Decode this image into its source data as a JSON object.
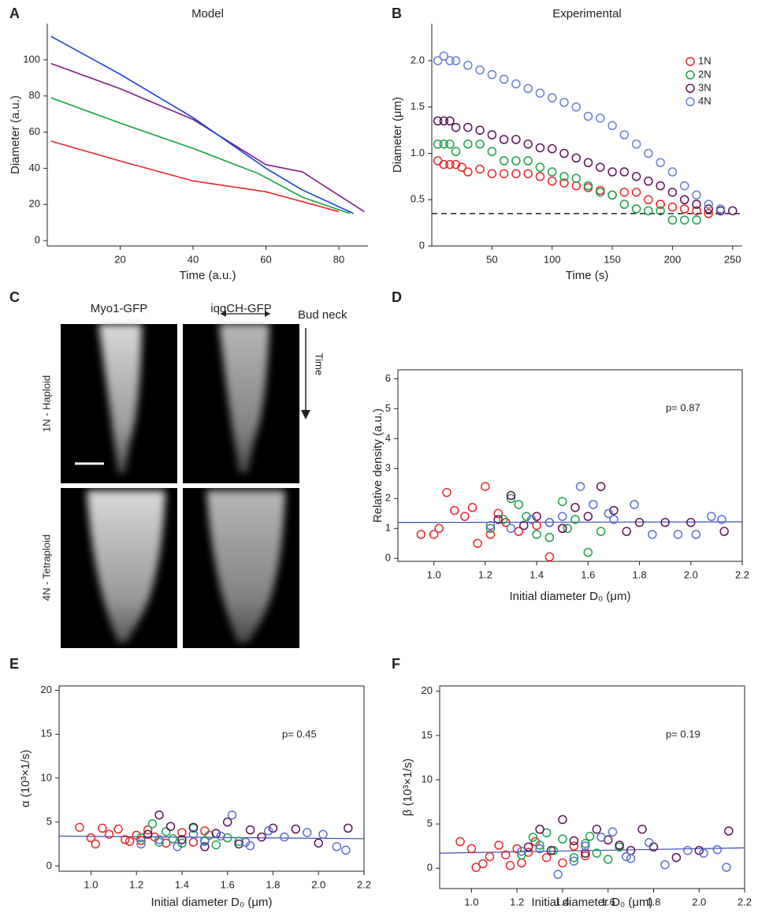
{
  "chart_data": [
    {
      "type": "line",
      "panel_label": "A",
      "title": "Model",
      "xlabel": "Time (a.u.)",
      "ylabel": "Diameter (a.u.)",
      "xlim": [
        0,
        88
      ],
      "xticks": [
        20,
        40,
        60,
        80
      ],
      "ylim": [
        -3,
        120
      ],
      "yticks": [
        0,
        20,
        40,
        60,
        80,
        100
      ],
      "series": [
        {
          "color": "#e8262a",
          "x": [
            1,
            20,
            40,
            60,
            80
          ],
          "values": [
            55,
            44,
            33,
            27,
            16
          ]
        },
        {
          "color": "#15a23c",
          "x": [
            1,
            20,
            40,
            58,
            70,
            83
          ],
          "values": [
            79,
            65,
            51,
            37,
            24,
            15
          ]
        },
        {
          "color": "#7e1f87",
          "x": [
            1,
            20,
            40,
            60,
            70,
            80,
            87
          ],
          "values": [
            98,
            84,
            67,
            42,
            38,
            25,
            16
          ]
        },
        {
          "color": "#1b3ee0",
          "x": [
            1,
            20,
            40,
            60,
            70,
            84
          ],
          "values": [
            113,
            92,
            68,
            40,
            28,
            15
          ]
        }
      ]
    },
    {
      "type": "scatter",
      "panel_label": "B",
      "title": "Experimental",
      "xlabel": "Time (s)",
      "ylabel": "Diameter (μm)",
      "xlim": [
        0,
        258
      ],
      "xticks": [
        50,
        100,
        150,
        200,
        250
      ],
      "ylim": [
        0,
        2.4
      ],
      "yticks": [
        0,
        0.5,
        {
          "value": 1,
          "label": "1.0"
        },
        1.5,
        {
          "value": 2,
          "label": "2.0"
        }
      ],
      "legend": "upper right",
      "hline": 0.35,
      "series": [
        {
          "name": "1N",
          "color": "#e8262a",
          "x": [
            5,
            10,
            15,
            20,
            25,
            30,
            40,
            50,
            60,
            70,
            80,
            90,
            100,
            110,
            120,
            130,
            140,
            150,
            160,
            170,
            180,
            190,
            200,
            210,
            220,
            230
          ],
          "values": [
            0.92,
            0.88,
            0.88,
            0.88,
            0.85,
            0.8,
            0.83,
            0.78,
            0.78,
            0.78,
            0.78,
            0.75,
            0.7,
            0.68,
            0.65,
            0.63,
            0.6,
            0.55,
            0.58,
            0.58,
            0.5,
            0.45,
            0.42,
            0.4,
            0.38,
            0.35
          ]
        },
        {
          "name": "2N",
          "color": "#1aa34a",
          "x": [
            5,
            10,
            15,
            20,
            30,
            40,
            50,
            60,
            70,
            80,
            90,
            100,
            110,
            120,
            130,
            140,
            150,
            160,
            170,
            180,
            190,
            200,
            210,
            220
          ],
          "values": [
            1.1,
            1.1,
            1.1,
            1.02,
            1.1,
            1.1,
            1.02,
            0.92,
            0.92,
            0.92,
            0.85,
            0.8,
            0.75,
            0.73,
            0.65,
            0.58,
            0.55,
            0.45,
            0.4,
            0.38,
            0.38,
            0.28,
            0.28,
            0.28
          ]
        },
        {
          "name": "3N",
          "color": "#5b1459",
          "x": [
            5,
            10,
            15,
            20,
            30,
            40,
            50,
            60,
            70,
            80,
            90,
            100,
            110,
            120,
            130,
            140,
            150,
            160,
            170,
            180,
            190,
            200,
            210,
            220,
            230,
            240,
            250
          ],
          "values": [
            1.35,
            1.35,
            1.35,
            1.28,
            1.28,
            1.25,
            1.2,
            1.15,
            1.15,
            1.1,
            1.06,
            1.05,
            1.0,
            0.95,
            0.9,
            0.85,
            0.8,
            0.8,
            0.75,
            0.7,
            0.65,
            0.58,
            0.5,
            0.45,
            0.4,
            0.38,
            0.38
          ]
        },
        {
          "name": "4N",
          "color": "#6a7fd8",
          "x": [
            5,
            10,
            15,
            20,
            30,
            40,
            50,
            60,
            70,
            80,
            90,
            100,
            110,
            120,
            130,
            140,
            150,
            160,
            170,
            180,
            190,
            200,
            210,
            220,
            230,
            240
          ],
          "values": [
            2.0,
            2.05,
            2.0,
            2.0,
            1.95,
            1.9,
            1.85,
            1.8,
            1.75,
            1.7,
            1.65,
            1.6,
            1.55,
            1.5,
            1.4,
            1.38,
            1.3,
            1.2,
            1.1,
            1.0,
            0.9,
            0.8,
            0.65,
            0.55,
            0.45,
            0.4
          ]
        }
      ]
    },
    {
      "type": "scatter",
      "panel_label": "D",
      "xlabel": "Initial diameter D₀ (μm)",
      "ylabel": "Relative density (a.u.)",
      "annotation": "p= 0.87",
      "xlim": [
        0.86,
        2.2
      ],
      "xticks": [
        {
          "value": 1,
          "label": "1.0"
        },
        1.2,
        1.4,
        1.6,
        1.8,
        {
          "value": 2,
          "label": "2.0"
        },
        2.2
      ],
      "ylim": [
        -0.1,
        6.3
      ],
      "yticks": [
        0,
        1,
        2,
        3,
        4,
        5,
        6
      ],
      "fit": {
        "color": "#3a4db5",
        "x": [
          0.86,
          2.2
        ],
        "values": [
          1.2,
          1.22
        ]
      },
      "series": [
        {
          "color": "#e8262a",
          "x": [
            0.95,
            1.0,
            1.02,
            1.05,
            1.08,
            1.12,
            1.15,
            1.17,
            1.2,
            1.22,
            1.25,
            1.28,
            1.33,
            1.4,
            1.45,
            1.5
          ],
          "values": [
            0.8,
            0.8,
            1.0,
            2.2,
            1.6,
            1.4,
            1.7,
            0.5,
            2.4,
            0.8,
            1.5,
            1.2,
            0.9,
            1.1,
            0.05,
            1.0
          ]
        },
        {
          "color": "#1aa34a",
          "x": [
            1.22,
            1.27,
            1.3,
            1.33,
            1.36,
            1.4,
            1.45,
            1.5,
            1.52,
            1.55,
            1.6,
            1.65
          ],
          "values": [
            1.0,
            1.3,
            2.0,
            1.8,
            1.4,
            0.8,
            0.7,
            1.9,
            1.0,
            1.3,
            0.2,
            0.9
          ]
        },
        {
          "color": "#5b1459",
          "x": [
            1.25,
            1.3,
            1.35,
            1.4,
            1.45,
            1.5,
            1.55,
            1.6,
            1.65,
            1.7,
            1.75,
            1.8,
            1.9,
            2.0,
            2.13
          ],
          "values": [
            1.3,
            2.1,
            1.1,
            1.4,
            1.2,
            1.0,
            1.7,
            1.4,
            2.4,
            1.6,
            0.9,
            1.2,
            1.2,
            1.2,
            0.9
          ]
        },
        {
          "color": "#5b6fd6",
          "x": [
            1.22,
            1.3,
            1.38,
            1.45,
            1.5,
            1.57,
            1.62,
            1.68,
            1.7,
            1.78,
            1.85,
            1.95,
            2.02,
            2.08,
            2.12
          ],
          "values": [
            1.1,
            1.0,
            1.3,
            1.2,
            1.4,
            2.4,
            1.8,
            1.5,
            1.3,
            1.8,
            0.8,
            0.8,
            0.8,
            1.4,
            1.3
          ]
        }
      ]
    },
    {
      "type": "scatter",
      "panel_label": "E",
      "xlabel": "Initial diameter D₀ (μm)",
      "ylabel": "α (10³×1/s)",
      "annotation": "p= 0.45",
      "xlim": [
        0.86,
        2.2
      ],
      "xticks": [
        {
          "value": 1,
          "label": "1.0"
        },
        1.2,
        1.4,
        1.6,
        1.8,
        {
          "value": 2,
          "label": "2.0"
        },
        2.2
      ],
      "ylim": [
        -0.6,
        20.5
      ],
      "yticks": [
        0,
        5,
        10,
        15,
        20
      ],
      "fit": {
        "color": "#3a4db5",
        "x": [
          0.86,
          2.2
        ],
        "values": [
          3.4,
          3.1
        ]
      },
      "series": [
        {
          "color": "#e8262a",
          "x": [
            0.95,
            1.0,
            1.02,
            1.05,
            1.08,
            1.12,
            1.15,
            1.17,
            1.2,
            1.22,
            1.25,
            1.28,
            1.33,
            1.4,
            1.45,
            1.5
          ],
          "values": [
            4.4,
            3.2,
            2.5,
            4.3,
            3.6,
            4.2,
            3.0,
            2.8,
            3.5,
            2.9,
            4.1,
            3.3,
            2.6,
            3.8,
            2.7,
            4.0
          ]
        },
        {
          "color": "#1aa34a",
          "x": [
            1.22,
            1.27,
            1.3,
            1.33,
            1.36,
            1.4,
            1.45,
            1.5,
            1.52,
            1.55,
            1.6,
            1.65
          ],
          "values": [
            3.2,
            4.8,
            2.7,
            3.9,
            3.1,
            2.6,
            4.3,
            2.9,
            3.5,
            2.4,
            3.2,
            2.8
          ]
        },
        {
          "color": "#5b1459",
          "x": [
            1.25,
            1.3,
            1.35,
            1.4,
            1.45,
            1.5,
            1.55,
            1.6,
            1.65,
            1.7,
            1.75,
            1.8,
            1.9,
            2.0,
            2.13
          ],
          "values": [
            3.6,
            5.8,
            4.5,
            3.0,
            4.4,
            2.2,
            3.7,
            5.0,
            2.5,
            4.1,
            3.3,
            4.3,
            4.2,
            2.6,
            4.3
          ]
        },
        {
          "color": "#5b6fd6",
          "x": [
            1.22,
            1.3,
            1.38,
            1.45,
            1.5,
            1.57,
            1.62,
            1.68,
            1.7,
            1.78,
            1.85,
            1.95,
            2.02,
            2.08,
            2.12
          ],
          "values": [
            2.5,
            3.0,
            2.2,
            3.6,
            2.8,
            3.4,
            5.8,
            2.7,
            2.3,
            4.0,
            3.3,
            3.8,
            3.6,
            2.2,
            1.8
          ]
        }
      ]
    },
    {
      "type": "scatter",
      "panel_label": "F",
      "xlabel": "Initial diameter D₀ (μm)",
      "ylabel": "β (10³×1/s)",
      "annotation": "p= 0.19",
      "xlim": [
        0.86,
        2.2
      ],
      "xticks": [
        {
          "value": 1,
          "label": "1.0"
        },
        1.2,
        1.4,
        1.6,
        1.8,
        {
          "value": 2,
          "label": "2.0"
        },
        2.2
      ],
      "ylim": [
        -2.3,
        20.6
      ],
      "yticks": [
        0,
        5,
        10,
        15,
        20
      ],
      "fit": {
        "color": "#3a4db5",
        "x": [
          0.86,
          2.2
        ],
        "values": [
          1.7,
          2.3
        ]
      },
      "series": [
        {
          "color": "#e8262a",
          "x": [
            0.95,
            1.0,
            1.02,
            1.05,
            1.08,
            1.12,
            1.15,
            1.17,
            1.2,
            1.22,
            1.25,
            1.28,
            1.33,
            1.4,
            1.45,
            1.5
          ],
          "values": [
            3.0,
            2.2,
            0.1,
            0.5,
            1.3,
            2.6,
            1.5,
            0.3,
            2.2,
            0.6,
            1.8,
            3.0,
            1.2,
            0.6,
            2.5,
            1.4
          ]
        },
        {
          "color": "#1aa34a",
          "x": [
            1.22,
            1.27,
            1.3,
            1.33,
            1.36,
            1.4,
            1.45,
            1.5,
            1.52,
            1.55,
            1.6,
            1.65
          ],
          "values": [
            1.5,
            3.5,
            2.6,
            4.0,
            2.0,
            3.3,
            1.2,
            2.8,
            3.6,
            1.7,
            1.0,
            2.4
          ]
        },
        {
          "color": "#5b1459",
          "x": [
            1.25,
            1.3,
            1.35,
            1.4,
            1.45,
            1.5,
            1.55,
            1.6,
            1.65,
            1.7,
            1.75,
            1.8,
            1.9,
            2.0,
            2.13
          ],
          "values": [
            2.4,
            4.4,
            2.0,
            5.5,
            3.1,
            1.7,
            4.4,
            3.2,
            2.6,
            2.0,
            4.4,
            2.4,
            1.2,
            2.0,
            4.2
          ]
        },
        {
          "color": "#5b6fd6",
          "x": [
            1.22,
            1.3,
            1.38,
            1.45,
            1.5,
            1.57,
            1.62,
            1.68,
            1.7,
            1.78,
            1.85,
            1.95,
            2.02,
            2.08,
            2.12
          ],
          "values": [
            1.9,
            2.2,
            -0.7,
            0.8,
            2.5,
            3.5,
            4.1,
            1.3,
            1.1,
            2.9,
            0.4,
            2.0,
            1.7,
            2.1,
            0.1
          ]
        }
      ]
    }
  ],
  "images": {
    "panel_label": "C",
    "columns": [
      "Myo1-GFP",
      "iqgCH-GFP"
    ],
    "rows": [
      "1N - Haploid",
      "4N - Tetraploid"
    ],
    "bud_neck": "Bud neck",
    "time": "Time"
  }
}
